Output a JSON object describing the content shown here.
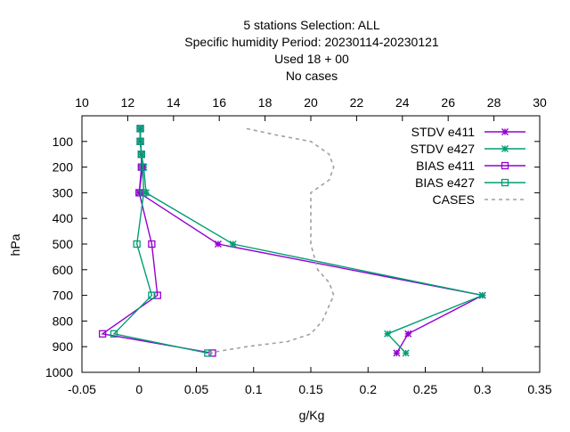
{
  "chart_data": {
    "type": "line",
    "title_lines": [
      "5 stations Selection: ALL",
      "Specific humidity  Period: 20230114-20230121",
      "Used  18  + 00",
      "No cases"
    ],
    "xlabel": "g/Kg",
    "ylabel": "hPa",
    "x_bottom": {
      "min": -0.05,
      "max": 0.35,
      "ticks": [
        "-0.05",
        "0",
        "0.05",
        "0.1",
        "0.15",
        "0.2",
        "0.25",
        "0.3",
        "0.35"
      ]
    },
    "x_top": {
      "min": 10,
      "max": 30,
      "ticks": [
        "10",
        "12",
        "14",
        "16",
        "18",
        "20",
        "22",
        "24",
        "26",
        "28",
        "30"
      ]
    },
    "y": {
      "min": 0,
      "max": 1000,
      "inverted": true,
      "ticks": [
        "100",
        "200",
        "300",
        "400",
        "500",
        "600",
        "700",
        "800",
        "900",
        "1000"
      ]
    },
    "legend_position": "top-right",
    "grid": false,
    "series": [
      {
        "name": "STDV e411",
        "color": "#9400d3",
        "marker": "star",
        "axis": "bottom",
        "x": [
          0.001,
          0.001,
          0.002,
          0.003,
          0.0,
          0.069,
          0.3,
          0.235,
          0.225
        ],
        "y": [
          50,
          100,
          150,
          200,
          300,
          500,
          700,
          850,
          925
        ]
      },
      {
        "name": "STDV e427",
        "color": "#009e73",
        "marker": "star",
        "axis": "bottom",
        "x": [
          0.001,
          0.001,
          0.002,
          0.004,
          0.006,
          0.082,
          0.3,
          0.217,
          0.233
        ],
        "y": [
          50,
          100,
          150,
          200,
          300,
          500,
          700,
          850,
          925
        ]
      },
      {
        "name": "BIAS e411",
        "color": "#9400d3",
        "marker": "square",
        "axis": "bottom",
        "x": [
          0.001,
          0.001,
          0.002,
          0.002,
          0.0,
          0.011,
          0.016,
          -0.032,
          0.064
        ],
        "y": [
          50,
          100,
          150,
          200,
          300,
          500,
          700,
          850,
          925
        ]
      },
      {
        "name": "BIAS e427",
        "color": "#009e73",
        "marker": "square",
        "axis": "bottom",
        "x": [
          0.001,
          0.001,
          0.002,
          0.003,
          0.004,
          -0.002,
          0.011,
          -0.022,
          0.06
        ],
        "y": [
          50,
          100,
          150,
          200,
          300,
          500,
          700,
          850,
          925
        ]
      },
      {
        "name": "CASES",
        "color": "#a0a0a0",
        "marker": "none",
        "dash": true,
        "axis": "top",
        "x": [
          17.2,
          18.5,
          20.0,
          20.8,
          21.0,
          20.8,
          20.0,
          20.0,
          20.0,
          20.3,
          20.8,
          21.0,
          20.5,
          20.0,
          19.0,
          17.2,
          15.5
        ],
        "y": [
          50,
          75,
          100,
          150,
          200,
          250,
          300,
          400,
          500,
          600,
          650,
          700,
          800,
          850,
          880,
          900,
          925
        ]
      }
    ]
  }
}
